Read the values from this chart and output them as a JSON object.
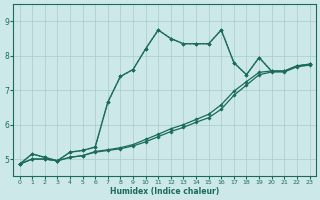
{
  "xlabel": "Humidex (Indice chaleur)",
  "xlim": [
    -0.5,
    23.5
  ],
  "ylim": [
    4.5,
    9.5
  ],
  "xticks": [
    0,
    1,
    2,
    3,
    4,
    5,
    6,
    7,
    8,
    9,
    10,
    11,
    12,
    13,
    14,
    15,
    16,
    17,
    18,
    19,
    20,
    21,
    22,
    23
  ],
  "yticks": [
    5,
    6,
    7,
    8,
    9
  ],
  "bg_color": "#cce8e8",
  "line_color": "#1a6b5a",
  "grid_color": "#aacccc",
  "lines": [
    {
      "x": [
        0,
        1,
        2,
        3,
        4,
        5,
        6,
        7,
        8,
        9,
        10,
        11,
        12,
        13,
        14,
        15,
        16,
        17,
        18,
        19,
        20,
        21,
        22,
        23
      ],
      "y": [
        4.85,
        5.15,
        5.05,
        4.95,
        5.2,
        5.25,
        5.35,
        6.65,
        7.4,
        7.6,
        8.2,
        8.75,
        8.5,
        8.35,
        8.35,
        8.35,
        8.75,
        7.8,
        7.45,
        7.95,
        7.55,
        7.55,
        7.7,
        7.75
      ],
      "linestyle": "-",
      "linewidth": 1.0
    },
    {
      "x": [
        0,
        1,
        2,
        3,
        4,
        5,
        6,
        7,
        8,
        9,
        10,
        11,
        12,
        13,
        14,
        15,
        16,
        17,
        18,
        19,
        20,
        21,
        22,
        23
      ],
      "y": [
        4.85,
        5.15,
        5.05,
        4.95,
        5.2,
        5.25,
        5.35,
        6.65,
        7.4,
        7.6,
        8.2,
        8.75,
        8.5,
        8.35,
        8.35,
        8.35,
        8.75,
        7.8,
        7.45,
        7.95,
        7.55,
        7.55,
        7.7,
        7.75
      ],
      "linestyle": ":",
      "linewidth": 0.9
    },
    {
      "x": [
        0,
        1,
        2,
        3,
        4,
        5,
        6,
        7,
        8,
        9,
        10,
        11,
        12,
        13,
        14,
        15,
        16,
        17,
        18,
        19,
        20,
        21,
        22,
        23
      ],
      "y": [
        4.85,
        5.0,
        5.0,
        4.95,
        5.05,
        5.1,
        5.2,
        5.25,
        5.3,
        5.38,
        5.5,
        5.65,
        5.8,
        5.92,
        6.07,
        6.2,
        6.45,
        6.85,
        7.15,
        7.45,
        7.53,
        7.53,
        7.68,
        7.73
      ],
      "linestyle": "-",
      "linewidth": 0.9
    },
    {
      "x": [
        0,
        1,
        2,
        3,
        4,
        5,
        6,
        7,
        8,
        9,
        10,
        11,
        12,
        13,
        14,
        15,
        16,
        17,
        18,
        19,
        20,
        21,
        22,
        23
      ],
      "y": [
        4.85,
        5.0,
        5.0,
        4.95,
        5.05,
        5.1,
        5.22,
        5.27,
        5.33,
        5.42,
        5.57,
        5.72,
        5.88,
        6.0,
        6.15,
        6.3,
        6.58,
        6.97,
        7.25,
        7.52,
        7.56,
        7.56,
        7.71,
        7.76
      ],
      "linestyle": "-",
      "linewidth": 0.9
    }
  ]
}
